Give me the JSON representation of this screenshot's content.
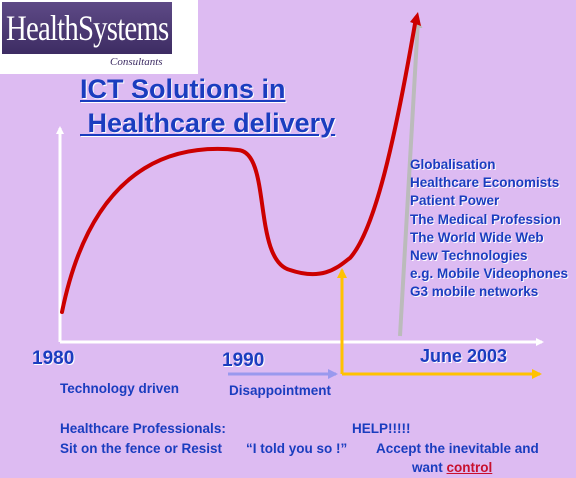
{
  "logo": {
    "name": "HealthSystems",
    "subtitle": "Consultants"
  },
  "title": {
    "line1": "ICT Solutions in",
    "line2": " Healthcare delivery"
  },
  "timeline": {
    "year_1980": "1980",
    "year_1990": "1990",
    "year_2003": "June 2003",
    "phase_1": "Technology driven",
    "phase_2": "Disappointment"
  },
  "factors": [
    "Globalisation",
    "Healthcare Economists",
    "Patient Power",
    "The Medical Profession",
    "The World Wide Web",
    "New Technologies",
    "e.g. Mobile Videophones",
    "G3 mobile networks"
  ],
  "bottom": {
    "professionals_label": "Healthcare Professionals:",
    "help": "HELP!!!!!",
    "sit_on_fence": "Sit on the fence or Resist",
    "told_you": "“I told you so !”",
    "accept": "Accept the inevitable and",
    "want": "want",
    "control": "control"
  },
  "colors": {
    "background": "#DDBBF2",
    "text_blue": "#1A3DBF",
    "curve_red": "#CC0000",
    "axis_white": "#FFFFFF",
    "arrow_yellow": "#FFC200",
    "arrow_grey": "#BBBBBB",
    "arrow_lavender": "#9999EE"
  }
}
